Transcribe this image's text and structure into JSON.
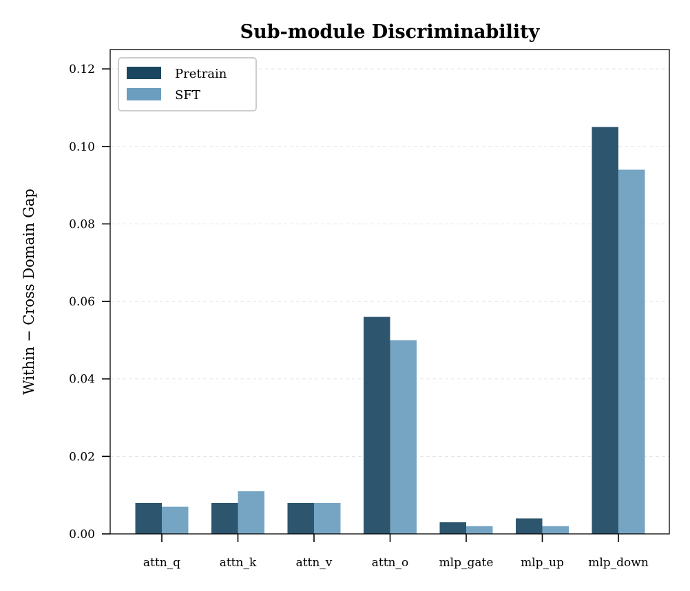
{
  "chart_data": {
    "type": "bar",
    "title": "Sub-module Discriminability",
    "xlabel": "",
    "ylabel": "Within − Cross Domain Gap",
    "categories": [
      "attn_q",
      "attn_k",
      "attn_v",
      "attn_o",
      "mlp_gate",
      "mlp_up",
      "mlp_down"
    ],
    "series": [
      {
        "name": "Pretrain",
        "values": [
          0.008,
          0.008,
          0.008,
          0.056,
          0.003,
          0.004,
          0.105
        ],
        "color": "#2d566e",
        "legend_color": "#1a4660"
      },
      {
        "name": "SFT",
        "values": [
          0.007,
          0.011,
          0.008,
          0.05,
          0.002,
          0.002,
          0.094
        ],
        "color": "#76a5c3",
        "legend_color": "#6b9ebf"
      }
    ],
    "ylim": [
      0,
      0.125
    ],
    "yticks": [
      0.0,
      0.02,
      0.04,
      0.06,
      0.08,
      0.1,
      0.12
    ],
    "ytick_labels": [
      "0.00",
      "0.02",
      "0.04",
      "0.06",
      "0.08",
      "0.10",
      "0.12"
    ],
    "grid": "y-dashed",
    "legend_position": "top-left"
  }
}
